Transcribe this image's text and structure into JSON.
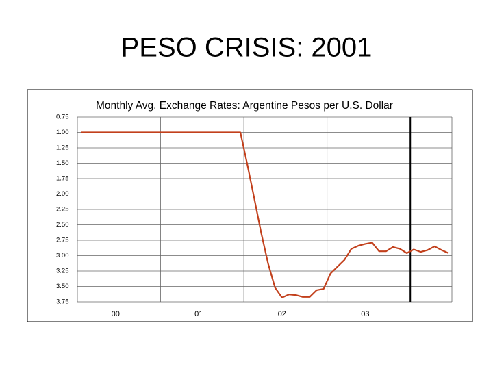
{
  "title": "PESO CRISIS: 2001",
  "chart_data": {
    "type": "line",
    "title": "Monthly Avg. Exchange Rates: Argentine Pesos per U.S. Dollar",
    "categories": [
      null,
      null,
      null,
      null,
      null,
      "00",
      null,
      null,
      null,
      null,
      null,
      null,
      null,
      null,
      null,
      null,
      null,
      "01",
      null,
      null,
      null,
      null,
      null,
      null,
      null,
      null,
      null,
      null,
      null,
      "02",
      null,
      null,
      null,
      null,
      null,
      null,
      null,
      null,
      null,
      null,
      null,
      "03",
      null,
      null,
      null,
      null,
      null,
      null,
      null,
      null,
      null,
      null,
      null,
      null
    ],
    "series": [
      {
        "color": "#c2401c",
        "values": [
          1,
          1,
          1,
          1,
          1,
          1,
          1,
          1,
          1,
          1,
          1,
          1,
          1,
          1,
          1,
          1,
          1,
          1,
          1,
          1,
          1,
          1,
          1,
          1,
          1.52,
          2.07,
          2.63,
          3.13,
          3.52,
          3.68,
          3.63,
          3.64,
          3.67,
          3.67,
          3.56,
          3.54,
          3.29,
          3.18,
          3.07,
          2.89,
          2.84,
          2.81,
          2.79,
          2.93,
          2.93,
          2.86,
          2.89,
          2.96,
          2.9,
          2.94,
          2.91,
          2.85,
          2.91,
          2.96
        ]
      }
    ],
    "ylim": [
      3.75,
      0.75
    ],
    "yticks": [
      0.75,
      {
        "value": 1,
        "label": "1.00"
      },
      1.25,
      {
        "value": 1.5,
        "label": "1.50"
      },
      1.75,
      {
        "value": 2,
        "label": "2.00"
      },
      2.25,
      {
        "value": 2.5,
        "label": "2.50"
      },
      2.75,
      {
        "value": 3,
        "label": "3.00"
      },
      3.25,
      {
        "value": 3.5,
        "label": "3.50"
      },
      3.75
    ],
    "grid": true
  }
}
